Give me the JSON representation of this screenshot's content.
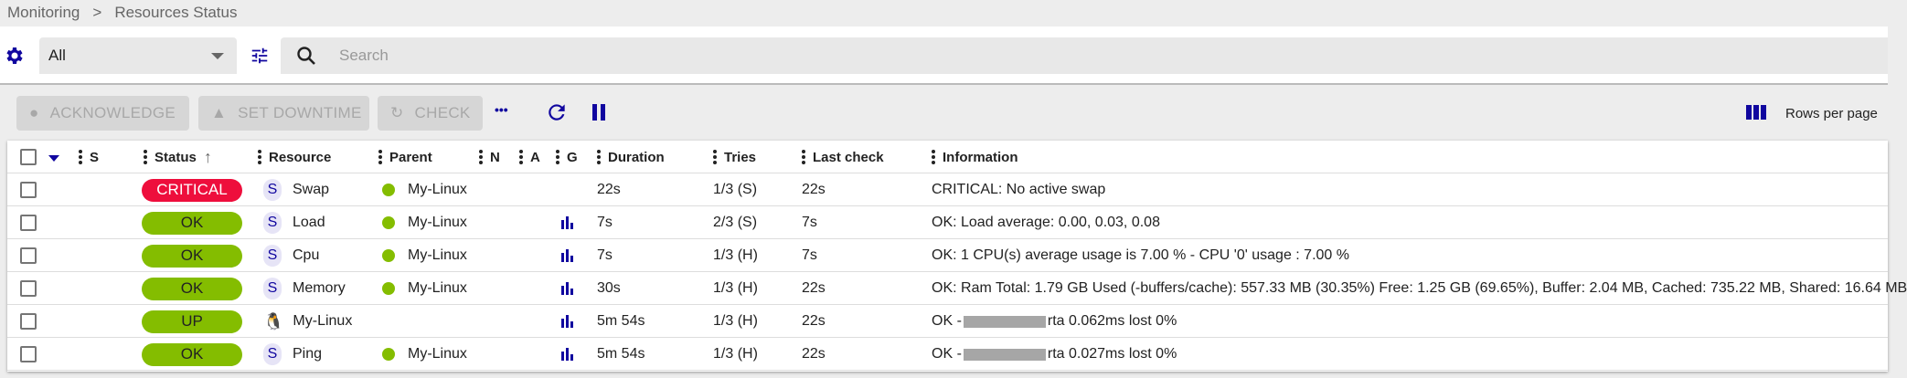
{
  "breadcrumb": [
    "Monitoring",
    "Resources Status"
  ],
  "filter": {
    "selected": "All",
    "search_placeholder": "Search"
  },
  "actions": {
    "acknowledge": "ACKNOWLEDGE",
    "set_downtime": "SET DOWNTIME",
    "check": "CHECK",
    "more": "•••",
    "rows_per_page": "Rows per page"
  },
  "colors": {
    "accent": "#10069f",
    "critical": "#ee0e3c",
    "ok": "#84bd00"
  },
  "columns": [
    "S",
    "Status",
    "Resource",
    "Parent",
    "N",
    "A",
    "G",
    "Duration",
    "Tries",
    "Last check",
    "Information"
  ],
  "rows": [
    {
      "status": "CRITICAL",
      "status_color": "#ee0e3c",
      "type": "S",
      "resource": "Swap",
      "parent": "My-Linux",
      "graph": false,
      "duration": "22s",
      "tries": "1/3 (S)",
      "last_check": "22s",
      "info": "CRITICAL: No active swap"
    },
    {
      "status": "OK",
      "status_color": "#84bd00",
      "type": "S",
      "resource": "Load",
      "parent": "My-Linux",
      "graph": true,
      "duration": "7s",
      "tries": "2/3 (S)",
      "last_check": "7s",
      "info": "OK: Load average: 0.00, 0.03, 0.08"
    },
    {
      "status": "OK",
      "status_color": "#84bd00",
      "type": "S",
      "resource": "Cpu",
      "parent": "My-Linux",
      "graph": true,
      "duration": "7s",
      "tries": "1/3 (H)",
      "last_check": "7s",
      "info": "OK: 1 CPU(s) average usage is 7.00 % - CPU '0' usage : 7.00 %"
    },
    {
      "status": "OK",
      "status_color": "#84bd00",
      "type": "S",
      "resource": "Memory",
      "parent": "My-Linux",
      "graph": true,
      "duration": "30s",
      "tries": "1/3 (H)",
      "last_check": "22s",
      "info": "OK: Ram Total: 1.79 GB Used (-buffers/cache): 557.33 MB (30.35%) Free: 1.25 GB (69.65%), Buffer: 2.04 MB, Cached: 735.22 MB, Shared: 16.64 MB"
    },
    {
      "status": "UP",
      "status_color": "#84bd00",
      "type": "host",
      "resource": "My-Linux",
      "parent": "",
      "graph": true,
      "duration": "5m 54s",
      "tries": "1/3 (H)",
      "last_check": "22s",
      "info_prefix": "OK -",
      "info": "rta 0.062ms lost 0%",
      "redacted": true
    },
    {
      "status": "OK",
      "status_color": "#84bd00",
      "type": "S",
      "resource": "Ping",
      "parent": "My-Linux",
      "graph": true,
      "duration": "5m 54s",
      "tries": "1/3 (H)",
      "last_check": "22s",
      "info_prefix": "OK -",
      "info": "rta 0.027ms lost 0%",
      "redacted": true
    }
  ]
}
